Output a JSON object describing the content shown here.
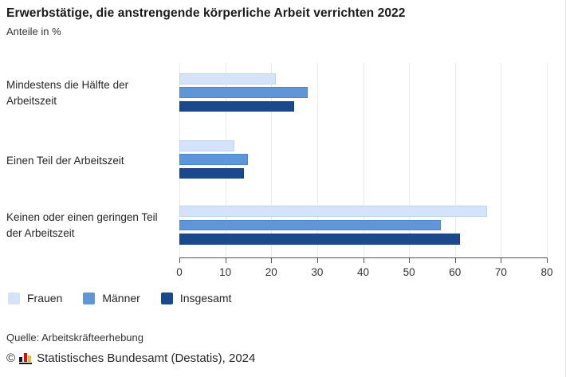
{
  "header": {
    "title": "Erwerbstätige, die anstrengende körperliche Arbeit verrichten 2022",
    "subtitle": "Anteile in %"
  },
  "chart_data": {
    "type": "bar",
    "orientation": "horizontal",
    "title": "Erwerbstätige, die anstrengende körperliche Arbeit verrichten 2022",
    "subtitle": "Anteile in %",
    "categories": [
      "Mindestens die Hälfte der Arbeitszeit",
      "Einen Teil der Arbeitszeit",
      "Keinen oder einen geringen Teil der Arbeitszeit"
    ],
    "series": [
      {
        "name": "Frauen",
        "color": "#d4e3f8",
        "border": "#bcd4f1",
        "values": [
          21,
          12,
          67
        ]
      },
      {
        "name": "Männer",
        "color": "#6095d8",
        "border": "#4e86cc",
        "values": [
          28,
          15,
          57
        ]
      },
      {
        "name": "Insgesamt",
        "color": "#1a4a8c",
        "border": "#143f7c",
        "values": [
          25,
          14,
          61
        ]
      }
    ],
    "xlabel": "",
    "ylabel": "",
    "xlim": [
      0,
      80
    ],
    "xticks": [
      0,
      10,
      20,
      30,
      40,
      50,
      60,
      70,
      80
    ],
    "grid": "vertical",
    "legend_position": "bottom-left",
    "unit": "%"
  },
  "footer": {
    "source": "Quelle: Arbeitskräfteerhebung",
    "copyright_prefix": "©",
    "copyright_text": "Statistisches Bundesamt (Destatis), 2024",
    "logo": "destatis-flag-bars-icon"
  },
  "colors": {
    "axis": "#555555",
    "grid": "#ebebeb",
    "logo_black": "#1a1a1a",
    "logo_red": "#de0c0c",
    "logo_gold": "#f2b822"
  }
}
